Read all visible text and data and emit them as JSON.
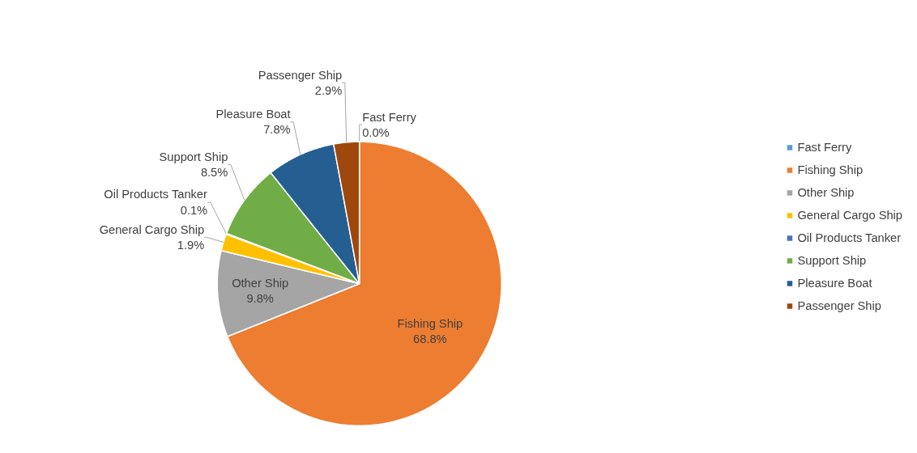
{
  "chart_data": {
    "type": "pie",
    "categories": [
      "Fast Ferry",
      "Fishing Ship",
      "Other Ship",
      "General Cargo Ship",
      "Oil Products Tanker",
      "Support Ship",
      "Pleasure Boat",
      "Passenger Ship"
    ],
    "values": [
      0.0,
      68.8,
      9.8,
      1.9,
      0.1,
      8.5,
      7.8,
      2.9
    ],
    "value_labels": [
      "0.0%",
      "68.8%",
      "9.8%",
      "1.9%",
      "0.1%",
      "8.5%",
      "7.8%",
      "2.9%"
    ],
    "colors": [
      "#5b9bd5",
      "#ed7d31",
      "#a5a5a5",
      "#ffc000",
      "#4472c4",
      "#70ad47",
      "#255e91",
      "#9e480e"
    ],
    "data_labels": true,
    "legend": "right"
  }
}
